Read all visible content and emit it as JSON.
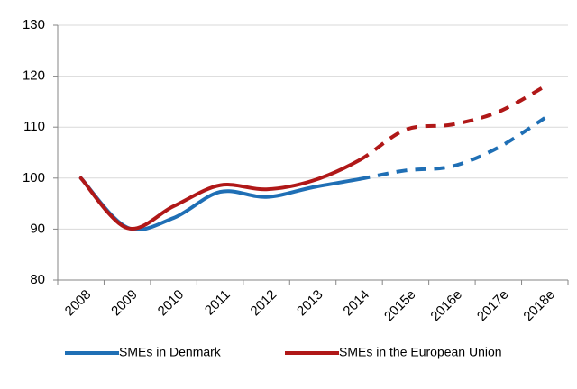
{
  "chart_data": {
    "type": "line",
    "categories": [
      "2008",
      "2009",
      "2010",
      "2011",
      "2012",
      "2013",
      "2014",
      "2015e",
      "2016e",
      "2017e",
      "2018e"
    ],
    "series": [
      {
        "name": "SMEs in Denmark",
        "color": "#1f6fb5",
        "values": [
          100,
          90.3,
          92.2,
          97.3,
          96.3,
          98.2,
          99.8,
          101.5,
          102.3,
          106,
          111.8
        ]
      },
      {
        "name": "SMEs in the European Union",
        "color": "#b01818",
        "values": [
          100,
          90.2,
          94.5,
          98.6,
          97.8,
          99.5,
          103.5,
          109.5,
          110.5,
          113,
          118
        ]
      }
    ],
    "estimate_from": 6,
    "ylim": [
      80,
      130
    ],
    "yticks": [
      80,
      90,
      100,
      110,
      120,
      130
    ],
    "grid": true,
    "legend": "bottom"
  }
}
